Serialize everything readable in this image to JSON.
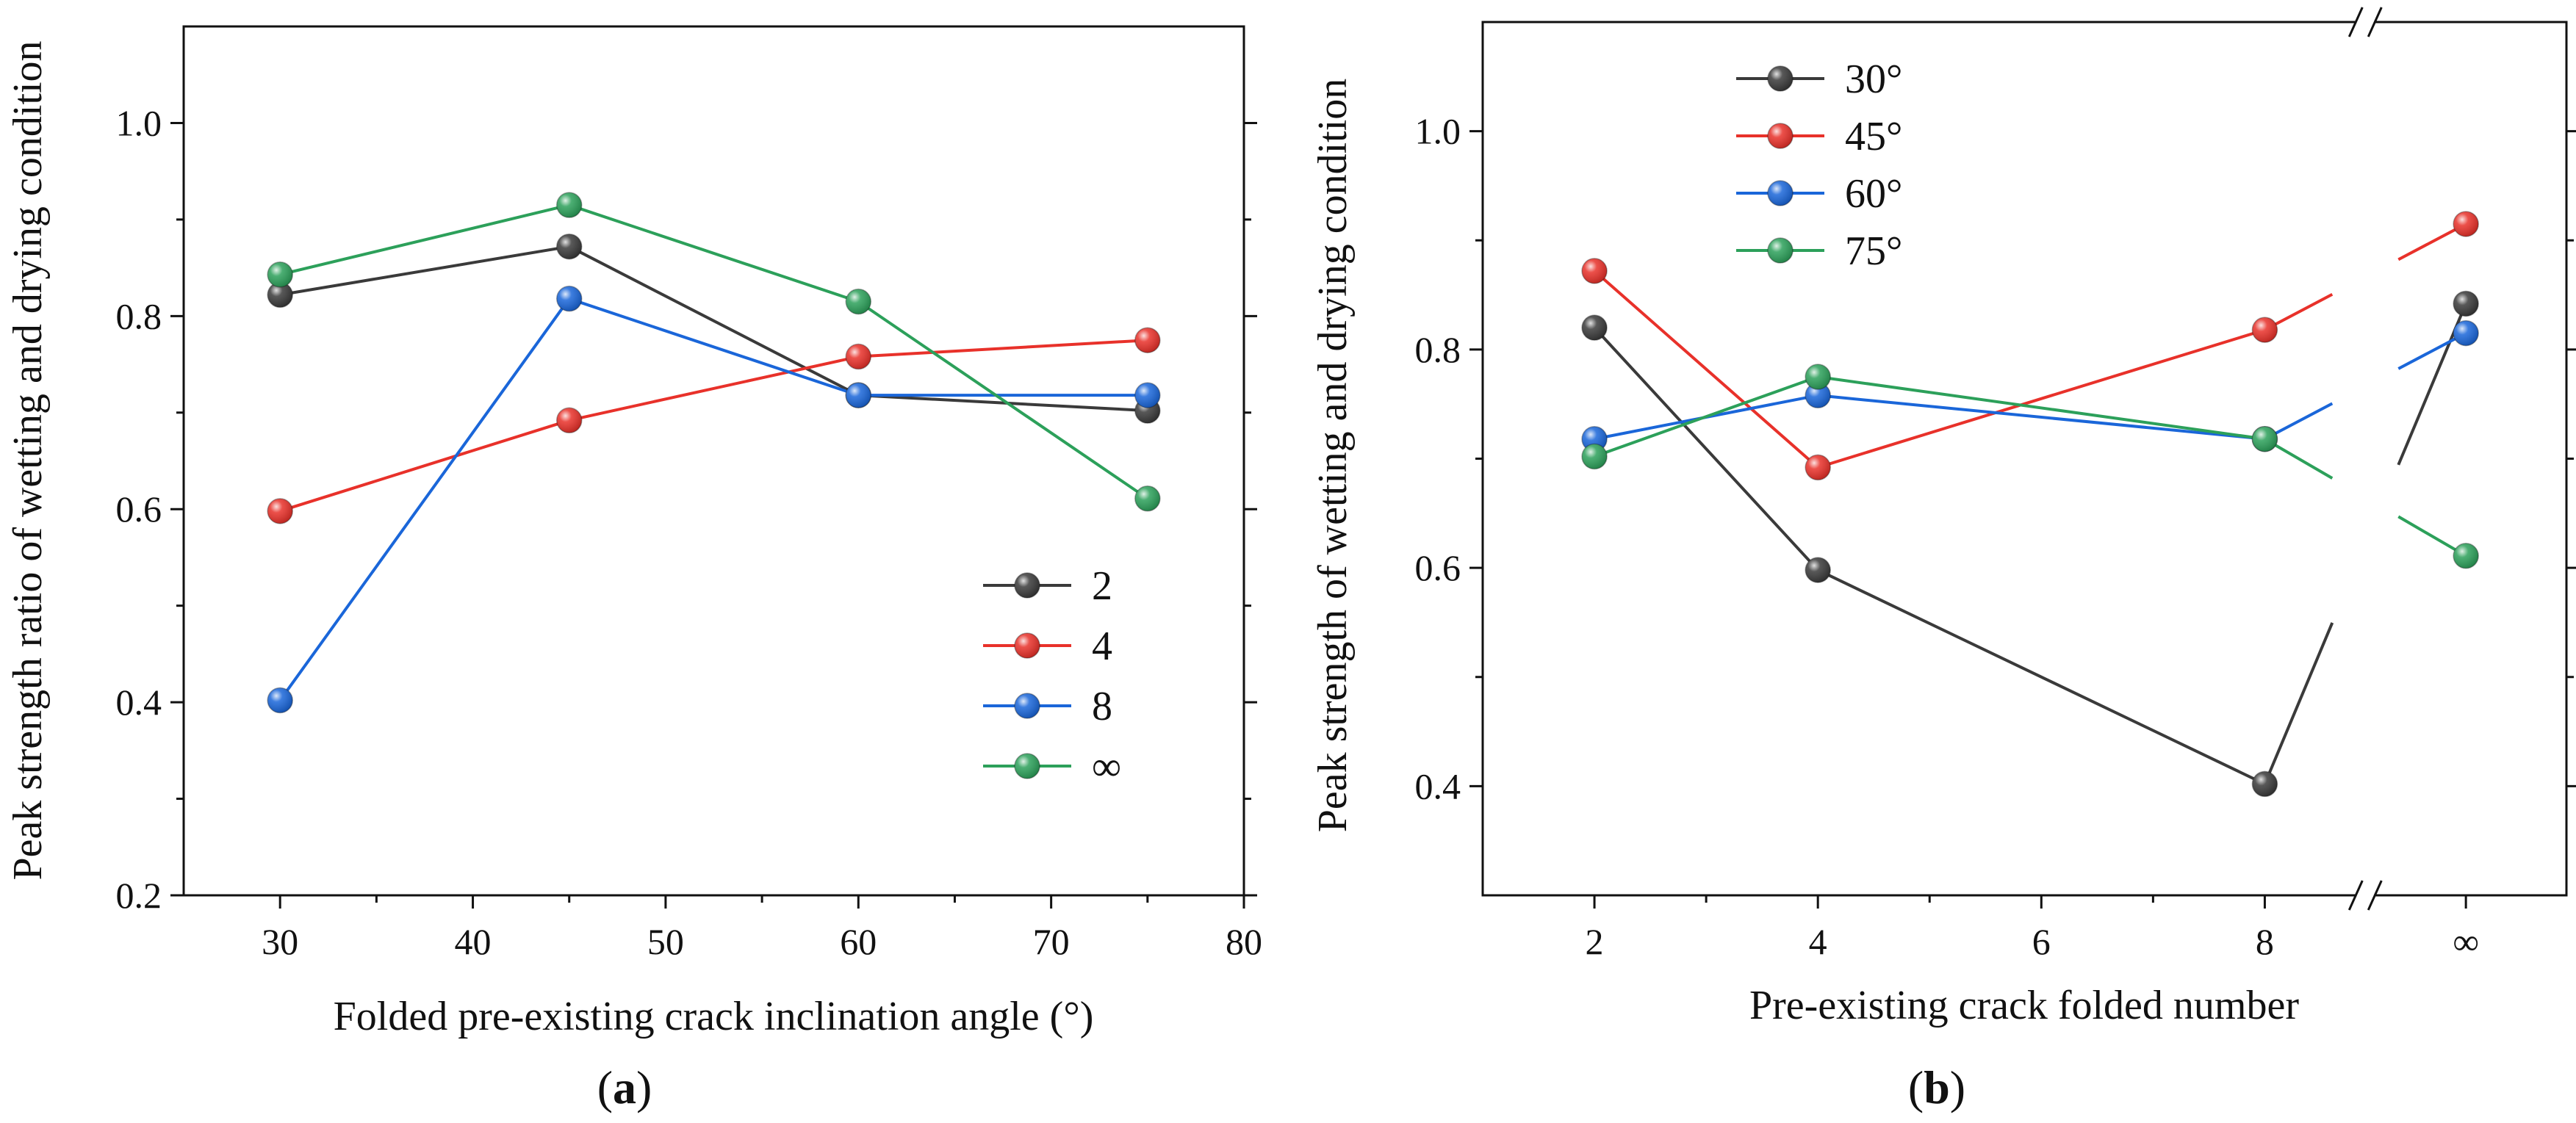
{
  "figure": {
    "panels": [
      {
        "label_open": "(",
        "label_letter": "a",
        "label_close": ")"
      },
      {
        "label_open": "(",
        "label_letter": "b",
        "label_close": ")"
      }
    ]
  },
  "chart_data": [
    {
      "type": "line",
      "panel": "a",
      "xlabel": "Folded pre-existing crack inclination angle (°)",
      "ylabel": "Peak strength ratio of wetting and drying condition",
      "xlim": [
        25,
        80
      ],
      "ylim": [
        0.2,
        1.1
      ],
      "xticks": [
        30,
        40,
        50,
        60,
        70,
        80
      ],
      "xtick_labels": [
        "30",
        "40",
        "50",
        "60",
        "70",
        "80"
      ],
      "yticks": [
        0.2,
        0.4,
        0.6,
        0.8,
        1.0
      ],
      "ytick_labels": [
        "0.2",
        "0.4",
        "0.6",
        "0.8",
        "1.0"
      ],
      "x": [
        30,
        45,
        60,
        75
      ],
      "legend_position": "center-right",
      "series": [
        {
          "name": "2",
          "color": "#3a3a3a",
          "values": [
            0.822,
            0.872,
            0.718,
            0.702
          ]
        },
        {
          "name": "4",
          "color": "#e8312a",
          "values": [
            0.598,
            0.692,
            0.758,
            0.775
          ]
        },
        {
          "name": "8",
          "color": "#1a66d9",
          "values": [
            0.402,
            0.818,
            0.718,
            0.718
          ]
        },
        {
          "name": "∞",
          "color": "#2ca05a",
          "values": [
            0.843,
            0.915,
            0.815,
            0.611
          ]
        }
      ]
    },
    {
      "type": "line",
      "panel": "b",
      "xlabel": "Pre-existing crack folded number",
      "ylabel": "Peak strength of wetting and drying condition",
      "xlim": [
        1,
        10.7
      ],
      "ylim": [
        0.3,
        1.1
      ],
      "axis_break_x": 8.9,
      "xticks": [
        2,
        4,
        6,
        8,
        9.8
      ],
      "xtick_labels": [
        "2",
        "4",
        "6",
        "8",
        "∞"
      ],
      "yticks": [
        0.4,
        0.6,
        0.8,
        1.0
      ],
      "ytick_labels": [
        "0.4",
        "0.6",
        "0.8",
        "1.0"
      ],
      "x": [
        2,
        4,
        8,
        9.8
      ],
      "legend_position": "top-left",
      "series": [
        {
          "name": "30°",
          "color": "#3a3a3a",
          "values": [
            0.82,
            0.598,
            0.402,
            0.842
          ]
        },
        {
          "name": "45°",
          "color": "#e8312a",
          "values": [
            0.872,
            0.692,
            0.818,
            0.915
          ]
        },
        {
          "name": "60°",
          "color": "#1a66d9",
          "values": [
            0.718,
            0.758,
            0.718,
            0.815
          ]
        },
        {
          "name": "75°",
          "color": "#2ca05a",
          "values": [
            0.702,
            0.775,
            0.718,
            0.611
          ]
        }
      ]
    }
  ]
}
